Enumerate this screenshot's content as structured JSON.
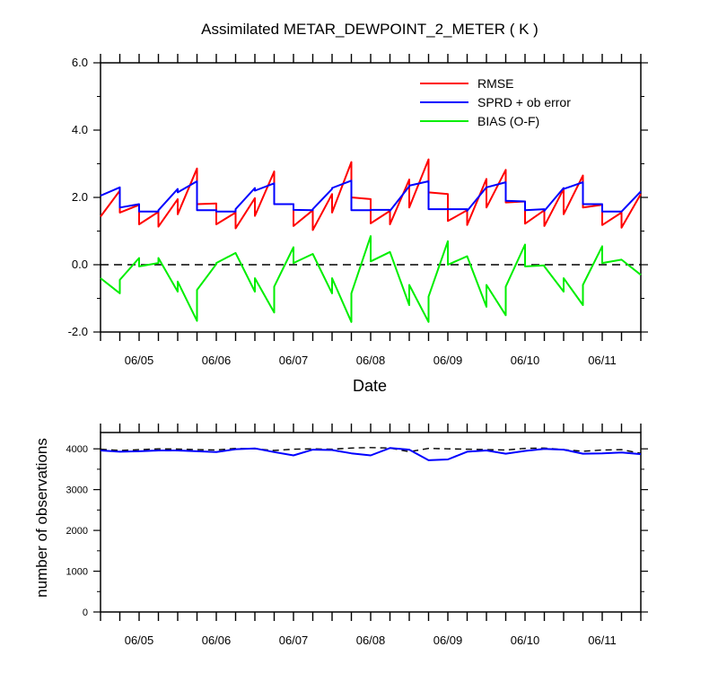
{
  "chart_data": [
    {
      "type": "line",
      "title": "Assimilated METAR_DEWPOINT_2_METER ( K )",
      "xlabel": "Date",
      "ylabel": "",
      "x_tick_labels": [
        "06/05",
        "06/06",
        "06/07",
        "06/08",
        "06/09",
        "06/10",
        "06/11"
      ],
      "ylim": [
        -2.0,
        6.0
      ],
      "y_ticks": [
        -2.0,
        0.0,
        2.0,
        4.0,
        6.0
      ],
      "y_tick_labels": [
        "-2.0",
        "0.0",
        "2.0",
        "4.0",
        "6.0"
      ],
      "x_days": [
        0,
        0.25,
        0.25,
        0.5,
        0.5,
        0.75,
        0.75,
        1,
        1,
        1.25,
        1.25,
        1.5,
        1.5,
        1.75,
        1.75,
        2,
        2,
        2.25,
        2.25,
        2.5,
        2.5,
        2.75,
        2.75,
        3,
        3,
        3.25,
        3.25,
        3.5,
        3.5,
        3.75,
        3.75,
        4,
        4,
        4.25,
        4.25,
        4.5,
        4.5,
        4.75,
        4.75,
        5,
        5,
        5.25,
        5.25,
        5.5,
        5.5,
        5.75,
        5.75,
        6,
        6,
        6.25,
        6.25,
        6.5,
        6.5,
        6.75,
        6.75,
        7
      ],
      "reference_line": {
        "y": 0.0,
        "style": "dashed"
      },
      "legend_position": "top-right",
      "series": [
        {
          "name": "RMSE",
          "color": "#ff0000",
          "values": [
            1.43,
            2.2,
            1.55,
            1.78,
            1.2,
            1.57,
            1.13,
            1.95,
            1.5,
            2.86,
            1.8,
            1.82,
            1.2,
            1.55,
            1.08,
            1.98,
            1.45,
            2.77,
            1.8,
            1.8,
            1.15,
            1.62,
            1.03,
            2.1,
            1.55,
            3.05,
            2.0,
            1.95,
            1.23,
            1.6,
            1.2,
            2.53,
            1.7,
            3.13,
            2.15,
            2.1,
            1.3,
            1.62,
            1.18,
            2.55,
            1.7,
            2.82,
            1.85,
            1.88,
            1.22,
            1.62,
            1.15,
            2.25,
            1.5,
            2.65,
            1.7,
            1.78,
            1.18,
            1.55,
            1.1,
            2.1
          ]
        },
        {
          "name": "SPRD + ob error",
          "color": "#0000ff",
          "values": [
            2.05,
            2.3,
            1.7,
            1.8,
            1.58,
            1.58,
            1.62,
            2.25,
            2.15,
            2.48,
            1.62,
            1.62,
            1.58,
            1.58,
            1.65,
            2.28,
            2.2,
            2.42,
            1.8,
            1.8,
            1.63,
            1.62,
            1.65,
            2.25,
            2.28,
            2.5,
            1.62,
            1.62,
            1.63,
            1.63,
            1.6,
            2.33,
            2.35,
            2.48,
            1.65,
            1.65,
            1.65,
            1.65,
            1.6,
            2.3,
            2.3,
            2.45,
            1.9,
            1.88,
            1.62,
            1.65,
            1.6,
            2.28,
            2.25,
            2.45,
            1.8,
            1.8,
            1.58,
            1.58,
            1.58,
            2.18
          ]
        },
        {
          "name": "BIAS (O-F)",
          "color": "#00ee00",
          "values": [
            -0.4,
            -0.85,
            -0.45,
            0.2,
            -0.05,
            0.05,
            0.2,
            -0.8,
            -0.5,
            -1.67,
            -0.75,
            0.02,
            0.05,
            0.35,
            0.35,
            -0.8,
            -0.4,
            -1.42,
            -0.65,
            0.52,
            0.05,
            0.32,
            0.32,
            -0.85,
            -0.4,
            -1.7,
            -0.85,
            0.85,
            0.1,
            0.38,
            0.38,
            -1.2,
            -0.6,
            -1.7,
            -0.95,
            0.7,
            0.0,
            0.25,
            0.25,
            -1.25,
            -0.6,
            -1.5,
            -0.65,
            0.6,
            -0.05,
            -0.02,
            -0.05,
            -0.8,
            -0.4,
            -1.2,
            -0.6,
            0.55,
            0.05,
            0.15,
            0.15,
            -0.3
          ]
        }
      ]
    },
    {
      "type": "line",
      "title": "",
      "xlabel": "",
      "ylabel": "number of observations",
      "x_tick_labels": [
        "06/05",
        "06/06",
        "06/07",
        "06/08",
        "06/09",
        "06/10",
        "06/11"
      ],
      "ylim": [
        0,
        4400
      ],
      "y_ticks": [
        0,
        1000,
        2000,
        3000,
        4000
      ],
      "y_tick_labels": [
        "0",
        "1000",
        "2000",
        "3000",
        "4000"
      ],
      "x_days": [
        0,
        0.25,
        0.5,
        0.75,
        1,
        1.25,
        1.5,
        1.75,
        2,
        2.25,
        2.5,
        2.75,
        3,
        3.25,
        3.5,
        3.75,
        4,
        4.25,
        4.5,
        4.75,
        5,
        5.25,
        5.5,
        5.75,
        6,
        6.25,
        6.5,
        6.75,
        7
      ],
      "series": [
        {
          "name": "",
          "color": "#000000",
          "style": "dashed",
          "values": [
            3990,
            3960,
            3980,
            4000,
            3995,
            3980,
            3970,
            4010,
            4000,
            3960,
            3990,
            4000,
            3990,
            4020,
            4030,
            4020,
            3930,
            4010,
            4000,
            3990,
            3980,
            3970,
            4010,
            4020,
            3980,
            3940,
            3970,
            3980,
            3890
          ]
        },
        {
          "name": "",
          "color": "#0000ff",
          "style": "solid",
          "values": [
            3960,
            3930,
            3940,
            3960,
            3960,
            3940,
            3920,
            3990,
            4010,
            3920,
            3840,
            3980,
            3970,
            3890,
            3840,
            4020,
            3980,
            3720,
            3740,
            3930,
            3960,
            3880,
            3950,
            4000,
            3980,
            3880,
            3890,
            3910,
            3870
          ]
        }
      ]
    }
  ]
}
